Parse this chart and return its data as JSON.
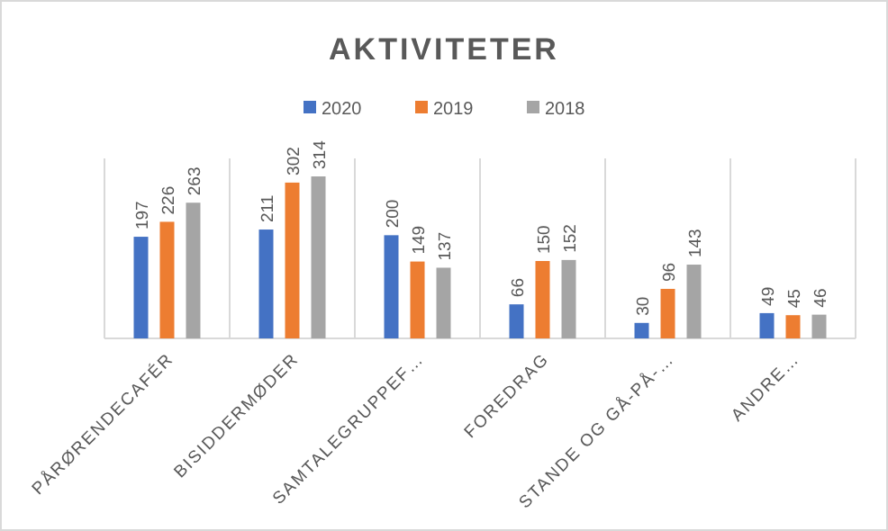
{
  "chart_data": {
    "type": "bar",
    "title": "AKTIVITETER",
    "categories": [
      "PÅRØRENDECAFÉR",
      "BISIDDERMØDER",
      "SAMTALEGRUPPEF…",
      "FOREDRAG",
      "STANDE OG GÅ-PÅ-…",
      "ANDRE…"
    ],
    "series": [
      {
        "name": "2020",
        "color": "#4472c4",
        "values": [
          197,
          211,
          200,
          66,
          30,
          49
        ]
      },
      {
        "name": "2019",
        "color": "#ed7d31",
        "values": [
          226,
          302,
          149,
          150,
          96,
          45
        ]
      },
      {
        "name": "2018",
        "color": "#a5a5a5",
        "values": [
          263,
          314,
          137,
          152,
          143,
          46
        ]
      }
    ],
    "data_labels": true,
    "grid": "x",
    "legend": "top"
  }
}
